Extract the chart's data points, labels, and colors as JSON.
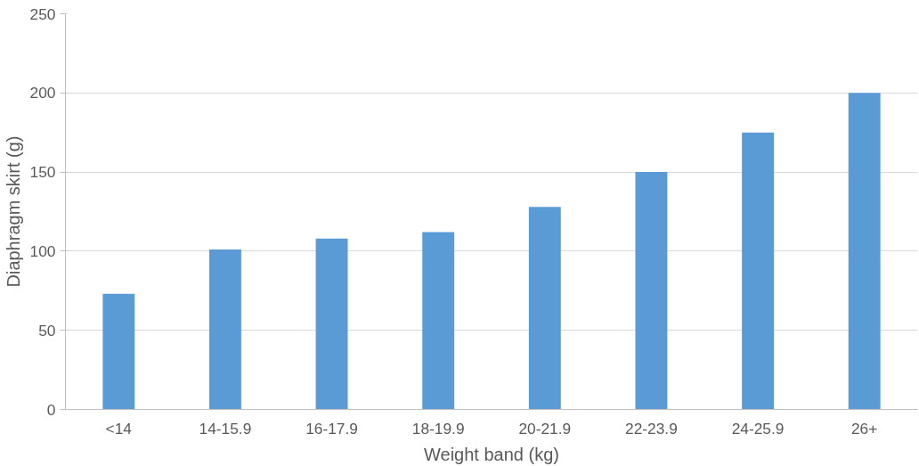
{
  "chart_data": {
    "type": "bar",
    "xlabel": "Weight band (kg)",
    "ylabel": "Diaphragm skirt (g)",
    "categories": [
      "<14",
      "14-15.9",
      "16-17.9",
      "18-19.9",
      "20-21.9",
      "22-23.9",
      "24-25.9",
      "26+"
    ],
    "values": [
      73,
      101,
      108,
      112,
      128,
      150,
      175,
      200
    ],
    "color": "#5b9bd5",
    "ylim": [
      0,
      250
    ],
    "yticks": [
      0,
      50,
      100,
      150,
      200,
      250
    ],
    "grid": "y"
  }
}
